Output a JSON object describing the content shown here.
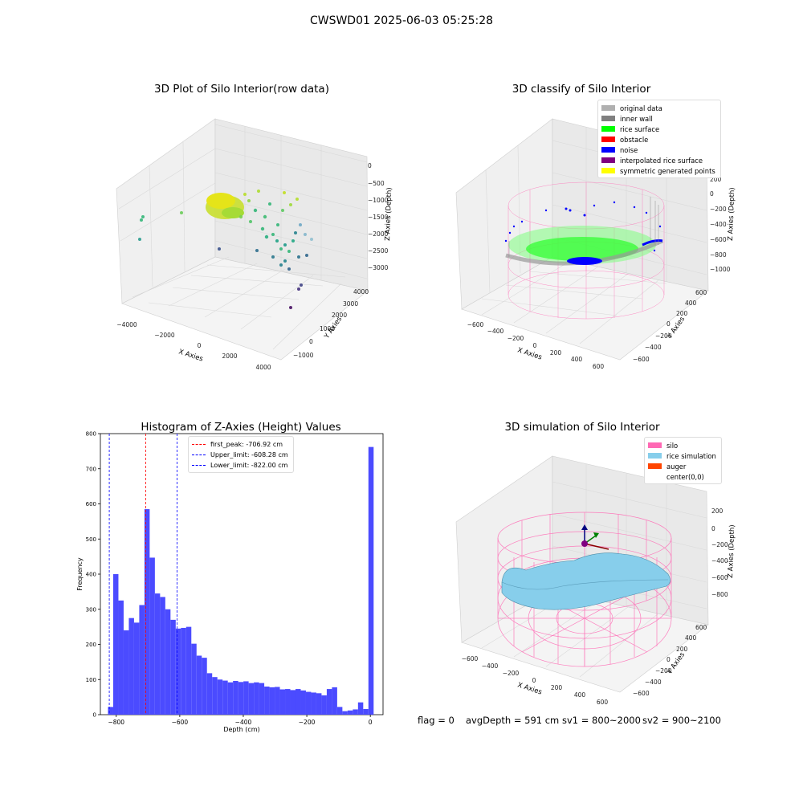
{
  "figure": {
    "suptitle": "CWSWD01 2025-06-03 05:25:28",
    "footer": {
      "flag": "flag = 0",
      "avg_depth": "avgDepth = 591 cm",
      "sv1": "sv1 = 800~2000",
      "sv2": "sv2 = 900~2100"
    }
  },
  "chart_data": [
    {
      "type": "scatter",
      "title": "3D Plot of Silo Interior(row data)",
      "xlabel": "X Axies",
      "ylabel": "Y Axies",
      "zlabel": "Z Axies (Depth)",
      "x_ticks": [
        "−4000",
        "−2000",
        "0",
        "2000",
        "4000"
      ],
      "y_ticks": [
        "−1000",
        "0",
        "1000",
        "2000",
        "3000",
        "4000"
      ],
      "z_ticks": [
        "0",
        "−500",
        "−1000",
        "−1500",
        "−2000",
        "−2500",
        "−3000"
      ],
      "colormap": "viridis"
    },
    {
      "type": "scatter",
      "title": "3D classify of Silo Interior",
      "xlabel": "X Axies",
      "ylabel": "Y Axies",
      "zlabel": "Z Axies (Depth)",
      "x_ticks": [
        "−600",
        "−400",
        "−200",
        "0",
        "200",
        "400",
        "600"
      ],
      "y_ticks": [
        "−600",
        "−400",
        "−200",
        "0",
        "200",
        "400",
        "600"
      ],
      "z_ticks": [
        "200",
        "0",
        "−200",
        "−400",
        "−600",
        "−800",
        "−1000"
      ],
      "z_tick_partial": "00",
      "legend": [
        {
          "name": "original data",
          "color": "#b0b0b0"
        },
        {
          "name": "inner wall",
          "color": "#808080"
        },
        {
          "name": "rice surface",
          "color": "#00ff00"
        },
        {
          "name": "obstacle",
          "color": "#ff0000"
        },
        {
          "name": "noise",
          "color": "#0000ff"
        },
        {
          "name": "interpolated rice surface",
          "color": "#800080"
        },
        {
          "name": "symmetric generated points",
          "color": "#ffff00"
        }
      ]
    },
    {
      "type": "bar",
      "title": "Histogram of Z-Axies (Height) Values",
      "xlabel": "Depth (cm)",
      "ylabel": "Frequency",
      "xlim": [
        -850,
        40
      ],
      "ylim": [
        0,
        800
      ],
      "x_ticks": [
        -800,
        -600,
        -400,
        -200,
        0
      ],
      "x_tick_labels": [
        "−800",
        "−600",
        "−400",
        "−200",
        "0"
      ],
      "y_ticks": [
        0,
        100,
        200,
        300,
        400,
        500,
        600,
        700,
        800
      ],
      "y_tick_labels": [
        "0",
        "100",
        "200",
        "300",
        "400",
        "500",
        "600",
        "700",
        "800"
      ],
      "bin_start": -826,
      "bin_width": 16.4,
      "counts": [
        22,
        400,
        325,
        240,
        275,
        262,
        312,
        585,
        447,
        345,
        335,
        300,
        270,
        245,
        247,
        250,
        202,
        168,
        162,
        118,
        107,
        100,
        97,
        92,
        96,
        93,
        95,
        90,
        92,
        90,
        80,
        78,
        79,
        72,
        73,
        70,
        73,
        69,
        65,
        63,
        61,
        55,
        73,
        78,
        22,
        10,
        12,
        15,
        35,
        16,
        762
      ],
      "bar_color": "#4b4bff",
      "lines": [
        {
          "label": "first_peak: -706.92 cm",
          "x": -706.92,
          "color": "#ff0000"
        },
        {
          "label": "Upper_limit: -608.28 cm",
          "x": -608.28,
          "color": "#0000ff"
        },
        {
          "label": "Lower_limit: -822.00 cm",
          "x": -822.0,
          "color": "#0000ff"
        }
      ]
    },
    {
      "type": "area",
      "title": "3D simulation of Silo Interior",
      "xlabel": "X Axies",
      "ylabel": "Y Axies",
      "zlabel": "Z Axies (Depth)",
      "x_ticks": [
        "−600",
        "−400",
        "−200",
        "0",
        "200",
        "400",
        "600"
      ],
      "y_ticks": [
        "−600",
        "−400",
        "−200",
        "0",
        "200",
        "400",
        "600"
      ],
      "z_ticks": [
        "200",
        "0",
        "−200",
        "−400",
        "−600",
        "−800"
      ],
      "legend": [
        {
          "name": "silo",
          "color": "#ff69b4"
        },
        {
          "name": "rice simulation",
          "color": "#87ceeb"
        },
        {
          "name": "auger",
          "color": "#ff4500"
        },
        {
          "name": "center(0,0)",
          "color": "#ffffff"
        }
      ]
    }
  ]
}
